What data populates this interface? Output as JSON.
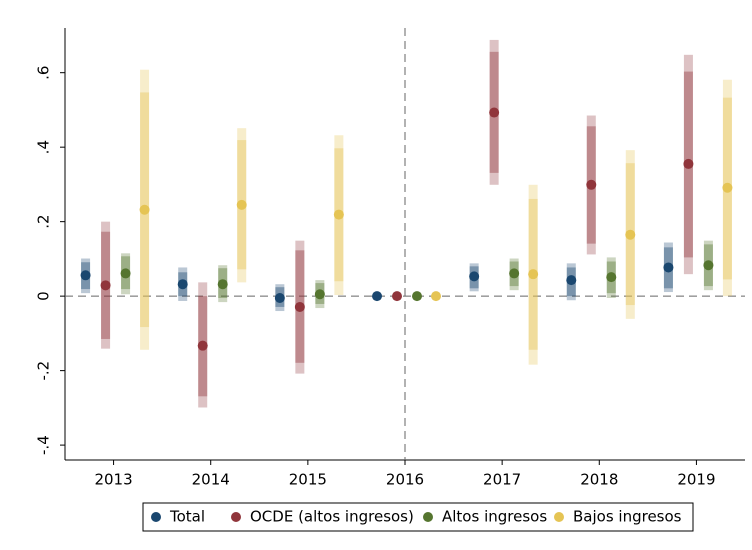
{
  "chart_data": {
    "type": "coefplot",
    "categories": [
      "2013",
      "2014",
      "2015",
      "2016",
      "2017",
      "2018",
      "2019"
    ],
    "ylim": [
      -0.44,
      0.72
    ],
    "yticks": [
      {
        "value": -0.4,
        "label": "-.4"
      },
      {
        "value": -0.2,
        "label": "-.2"
      },
      0,
      {
        "value": 0.2,
        "label": ".2"
      },
      {
        "value": 0.4,
        "label": ".4"
      },
      {
        "value": 0.6,
        "label": ".6"
      }
    ],
    "reference_y": 0,
    "reference_category": "2016",
    "series": [
      {
        "name": "Total",
        "color": "#1a476f",
        "values": [
          0.056,
          0.032,
          -0.005,
          0,
          0.053,
          0.043,
          0.077
        ],
        "ci95_low": [
          0.008,
          -0.013,
          -0.04,
          null,
          0.013,
          -0.011,
          0.011
        ],
        "ci95_high": [
          0.101,
          0.077,
          0.032,
          null,
          0.088,
          0.088,
          0.144
        ],
        "ci90_low": [
          0.019,
          0.0,
          -0.029,
          null,
          0.021,
          0.0,
          0.021
        ],
        "ci90_high": [
          0.091,
          0.064,
          0.024,
          null,
          0.08,
          0.077,
          0.131
        ]
      },
      {
        "name": "OCDE (altos ingresos)",
        "color": "#90353b",
        "values": [
          0.029,
          -0.133,
          -0.029,
          0,
          0.493,
          0.299,
          0.355
        ],
        "ci95_low": [
          -0.141,
          -0.299,
          -0.208,
          null,
          0.299,
          0.112,
          0.059
        ],
        "ci95_high": [
          0.2,
          0.037,
          0.149,
          null,
          0.688,
          0.485,
          0.648
        ],
        "ci90_low": [
          -0.115,
          -0.269,
          -0.179,
          null,
          0.331,
          0.141,
          0.104
        ],
        "ci90_high": [
          0.173,
          0.0,
          0.123,
          null,
          0.656,
          0.456,
          0.603
        ]
      },
      {
        "name": "Altos ingresos",
        "color": "#55752f",
        "values": [
          0.061,
          0.032,
          0.005,
          0,
          0.061,
          0.051,
          0.083
        ],
        "ci95_low": [
          0.005,
          -0.016,
          -0.032,
          null,
          0.016,
          -0.005,
          0.016
        ],
        "ci95_high": [
          0.115,
          0.083,
          0.043,
          null,
          0.101,
          0.104,
          0.149
        ],
        "ci90_low": [
          0.019,
          -0.005,
          -0.021,
          null,
          0.027,
          0.008,
          0.027
        ],
        "ci90_high": [
          0.107,
          0.075,
          0.035,
          null,
          0.093,
          0.093,
          0.139
        ]
      },
      {
        "name": "Bajos ingresos",
        "color": "#e5c454",
        "values": [
          0.232,
          0.245,
          0.219,
          0,
          0.059,
          0.165,
          0.291
        ],
        "ci95_low": [
          -0.144,
          0.037,
          0.003,
          null,
          -0.184,
          -0.061,
          0.0
        ],
        "ci95_high": [
          0.608,
          0.451,
          0.432,
          null,
          0.299,
          0.392,
          0.581
        ],
        "ci90_low": [
          -0.083,
          0.072,
          0.04,
          null,
          -0.144,
          -0.024,
          0.045
        ],
        "ci90_high": [
          0.547,
          0.419,
          0.397,
          null,
          0.261,
          0.357,
          0.533
        ]
      }
    ]
  }
}
